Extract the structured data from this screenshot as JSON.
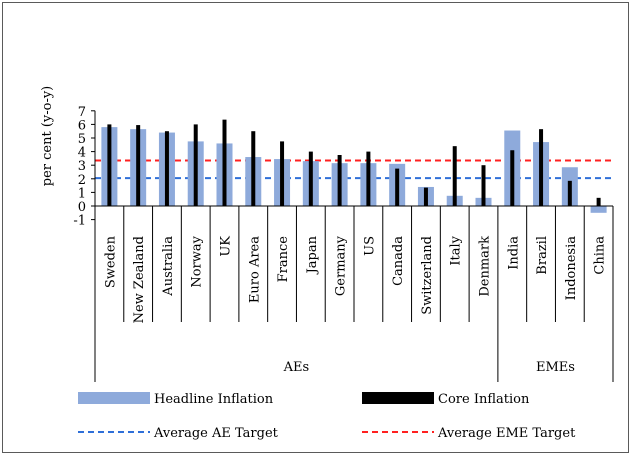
{
  "chart_data": {
    "type": "bar",
    "ylabel": "per cent (y-o-y)",
    "ylim": [
      -1,
      7
    ],
    "yticks": [
      -1,
      0,
      1,
      2,
      3,
      4,
      5,
      6,
      7
    ],
    "grid": false,
    "legend_placement": "bottom",
    "categories": [
      "Sweden",
      "New Zealand",
      "Australia",
      "Norway",
      "UK",
      "Euro Area",
      "France",
      "Japan",
      "Germany",
      "US",
      "Canada",
      "Switzerland",
      "Italy",
      "Denmark",
      "India",
      "Brazil",
      "Indonesia",
      "China"
    ],
    "groups": [
      {
        "label": "AEs",
        "count": 14
      },
      {
        "label": "EMEs",
        "count": 4
      }
    ],
    "series": [
      {
        "name": "Headline Inflation",
        "color": "#8eaadb",
        "values": [
          5.8,
          5.65,
          5.4,
          4.75,
          4.6,
          3.6,
          3.45,
          3.3,
          3.15,
          3.15,
          3.1,
          1.4,
          0.75,
          0.6,
          5.55,
          4.7,
          2.85,
          -0.5
        ]
      },
      {
        "name": "Core Inflation",
        "color": "#000000",
        "values": [
          6.0,
          5.95,
          5.5,
          6.0,
          6.35,
          5.5,
          4.75,
          4.0,
          3.75,
          4.0,
          2.75,
          1.35,
          4.4,
          3.0,
          4.1,
          5.65,
          1.85,
          0.6
        ]
      }
    ],
    "reference_lines": [
      {
        "name": "Average AE Target",
        "value": 2.05,
        "color": "#2e6fd8"
      },
      {
        "name": "Average EME Target",
        "value": 3.35,
        "color": "#ff2020"
      }
    ]
  }
}
